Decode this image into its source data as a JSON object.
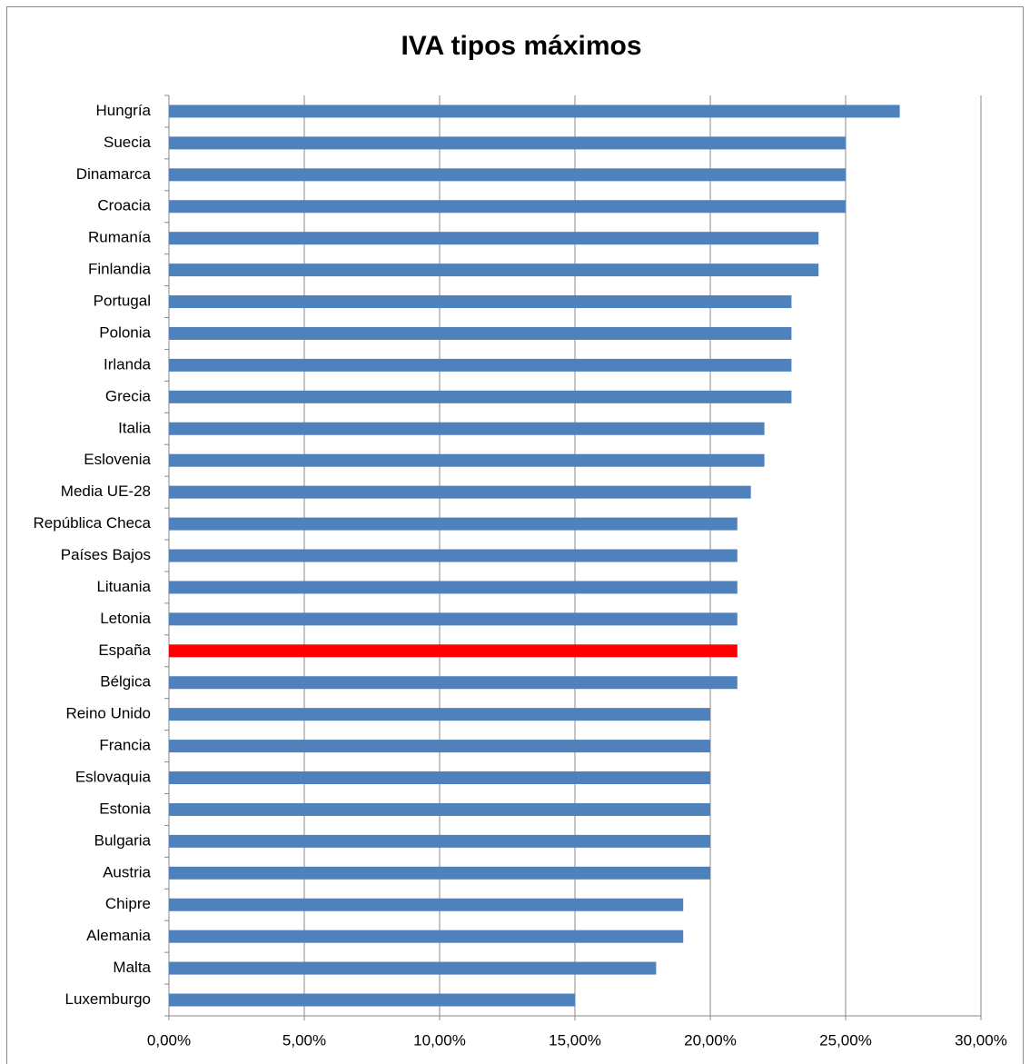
{
  "chart_data": {
    "type": "bar",
    "orientation": "horizontal",
    "title": "IVA tipos máximos",
    "categories": [
      "Hungría",
      "Suecia",
      "Dinamarca",
      "Croacia",
      "Rumanía",
      "Finlandia",
      "Portugal",
      "Polonia",
      "Irlanda",
      "Grecia",
      "Italia",
      "Eslovenia",
      "Media UE-28",
      "República Checa",
      "Países Bajos",
      "Lituania",
      "Letonia",
      "España",
      "Bélgica",
      "Reino Unido",
      "Francia",
      "Eslovaquia",
      "Estonia",
      "Bulgaria",
      "Austria",
      "Chipre",
      "Alemania",
      "Malta",
      "Luxemburgo"
    ],
    "values": [
      27,
      25,
      25,
      25,
      24,
      24,
      23,
      23,
      23,
      23,
      22,
      22,
      21.5,
      21,
      21,
      21,
      21,
      21,
      21,
      20,
      20,
      20,
      20,
      20,
      20,
      19,
      19,
      18,
      15
    ],
    "colors": [
      "#4f81bd",
      "#4f81bd",
      "#4f81bd",
      "#4f81bd",
      "#4f81bd",
      "#4f81bd",
      "#4f81bd",
      "#4f81bd",
      "#4f81bd",
      "#4f81bd",
      "#4f81bd",
      "#4f81bd",
      "#4f81bd",
      "#4f81bd",
      "#4f81bd",
      "#4f81bd",
      "#4f81bd",
      "#ff0000",
      "#4f81bd",
      "#4f81bd",
      "#4f81bd",
      "#4f81bd",
      "#4f81bd",
      "#4f81bd",
      "#4f81bd",
      "#4f81bd",
      "#4f81bd",
      "#4f81bd",
      "#4f81bd"
    ],
    "xlim": [
      0,
      30
    ],
    "xticks": [
      {
        "value": 0,
        "label": "0,00%"
      },
      {
        "value": 5,
        "label": "5,00%"
      },
      {
        "value": 10,
        "label": "10,00%"
      },
      {
        "value": 15,
        "label": "15,00%"
      },
      {
        "value": 20,
        "label": "20,00%"
      },
      {
        "value": 25,
        "label": "25,00%"
      },
      {
        "value": 30,
        "label": "30,00%"
      }
    ],
    "grid": true
  }
}
